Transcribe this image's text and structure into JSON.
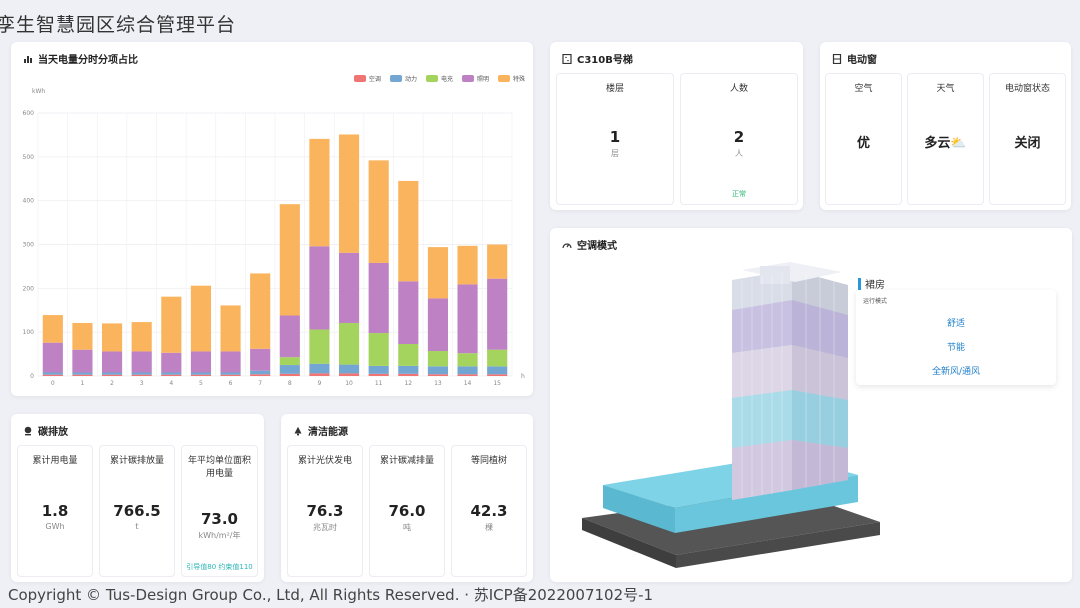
{
  "app": {
    "title": "孪生智慧园区综合管理平台"
  },
  "footer": {
    "text": "Copyright © Tus-Design Group Co., Ltd, All Rights Reserved. · 苏ICP备2022007102号-1"
  },
  "colors": {
    "ac": "#f07474",
    "power": "#74a6d4",
    "ev": "#a4d45e",
    "lighting": "#bd81c4",
    "special": "#f9b45d"
  },
  "energy_chart": {
    "title": "当天电量分时分项占比",
    "icon": "bar-chart-icon",
    "ylabel": "kWh",
    "xlabel": "h",
    "legend": [
      "空调",
      "动力",
      "电充",
      "照明",
      "特殊"
    ],
    "chart_data": {
      "type": "bar",
      "stacked": true,
      "categories": [
        "0",
        "1",
        "2",
        "3",
        "4",
        "5",
        "6",
        "7",
        "8",
        "9",
        "10",
        "11",
        "12",
        "13",
        "14",
        "15"
      ],
      "ylim": [
        0,
        600
      ],
      "yticks": [
        "0",
        "100",
        "200",
        "300",
        "400",
        "500",
        "600"
      ],
      "grid": true,
      "legend_position": "top-right",
      "series": [
        {
          "name": "空调",
          "values": [
            3,
            3,
            3,
            3,
            3,
            3,
            3,
            4,
            5,
            6,
            6,
            5,
            5,
            4,
            4,
            4
          ]
        },
        {
          "name": "动力",
          "values": [
            5,
            5,
            5,
            5,
            5,
            5,
            5,
            8,
            20,
            22,
            20,
            18,
            18,
            18,
            18,
            18
          ]
        },
        {
          "name": "电充",
          "values": [
            0,
            0,
            0,
            0,
            0,
            0,
            0,
            0,
            18,
            78,
            95,
            75,
            50,
            35,
            30,
            38
          ]
        },
        {
          "name": "照明",
          "values": [
            68,
            52,
            48,
            48,
            45,
            48,
            48,
            50,
            95,
            190,
            160,
            160,
            143,
            120,
            157,
            162
          ]
        },
        {
          "name": "特殊",
          "values": [
            63,
            61,
            64,
            67,
            128,
            150,
            105,
            172,
            254,
            245,
            270,
            234,
            229,
            117,
            88,
            78
          ]
        }
      ]
    }
  },
  "elevator": {
    "title": "C310B号梯",
    "icon": "elevator-icon",
    "floor": {
      "label": "楼层",
      "value": "1",
      "unit": "层"
    },
    "people": {
      "label": "人数",
      "value": "2",
      "unit": "人",
      "status": "正常"
    }
  },
  "window": {
    "title": "电动窗",
    "icon": "window-icon",
    "air": {
      "label": "空气",
      "value": "优"
    },
    "weather": {
      "label": "天气",
      "value": "多云⛅"
    },
    "status": {
      "label": "电动窗状态",
      "value": "关闭"
    }
  },
  "carbon": {
    "title": "碳排放",
    "icon": "location-pin-icon",
    "items": [
      {
        "label": "累计用电量",
        "value": "1.8",
        "unit": "GWh"
      },
      {
        "label": "累计碳排放量",
        "value": "766.5",
        "unit": "t"
      },
      {
        "label": "年平均单位面积用电量",
        "value": "73.0",
        "unit": "kWh/m²/年",
        "note": "引导值80 约束值110"
      }
    ]
  },
  "clean_energy": {
    "title": "清洁能源",
    "icon": "bell-icon",
    "items": [
      {
        "label": "累计光伏发电",
        "value": "76.3",
        "unit": "兆瓦时"
      },
      {
        "label": "累计碳减排量",
        "value": "76.0",
        "unit": "吨"
      },
      {
        "label": "等同植树",
        "value": "42.3",
        "unit": "棵"
      }
    ]
  },
  "ac_mode": {
    "title": "空调模式",
    "icon": "gauge-icon",
    "zone": "裙房",
    "run_label": "运行模式",
    "modes": [
      "舒适",
      "节能",
      "全新风/通风"
    ]
  }
}
